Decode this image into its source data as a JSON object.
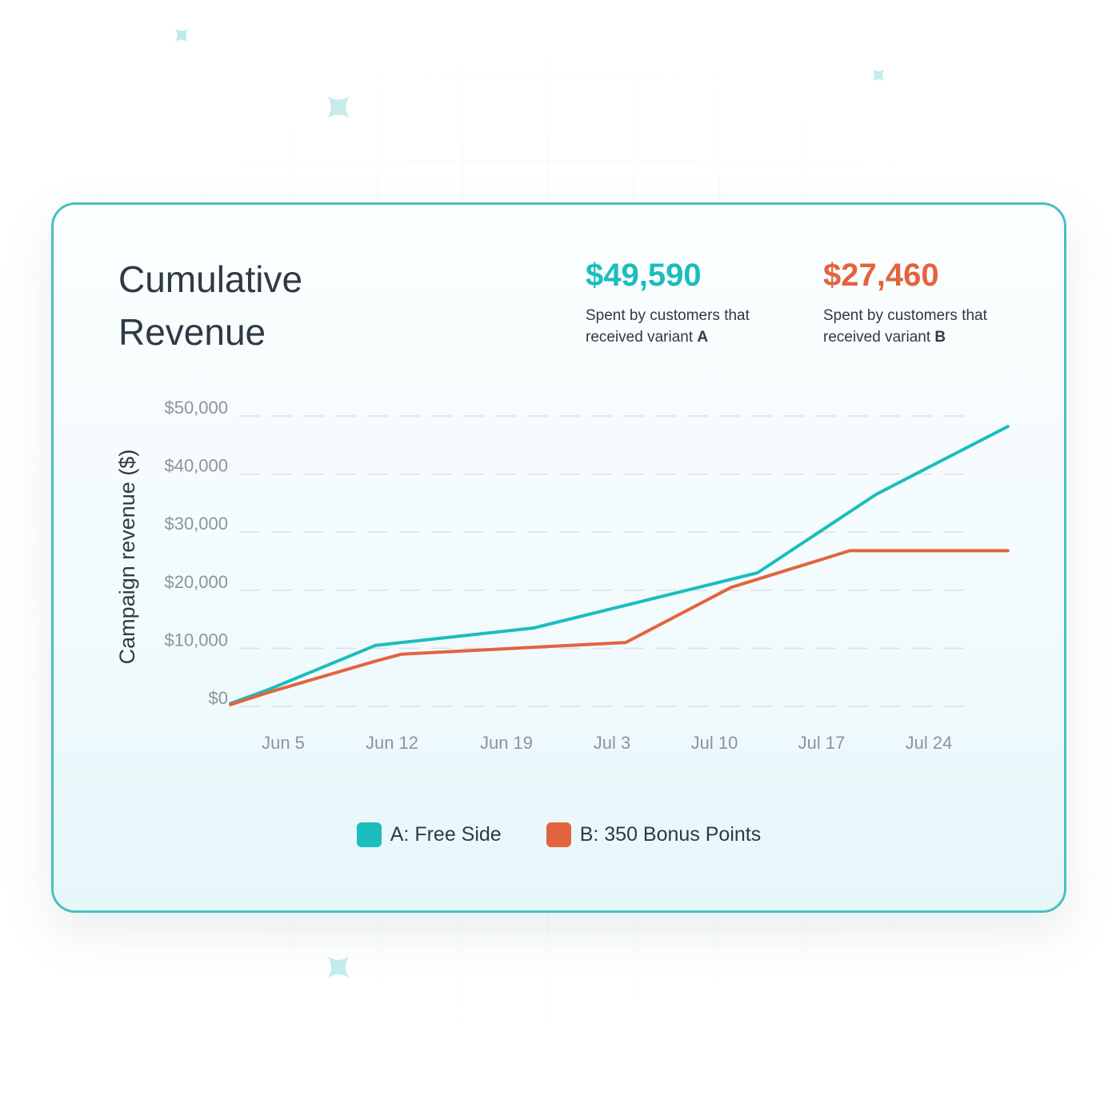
{
  "header": {
    "title": "Cumulative Revenue"
  },
  "stats": [
    {
      "value": "$49,590",
      "caption_prefix": "Spent by customers that received variant",
      "caption_variant": "A",
      "color": "#1bbdbd"
    },
    {
      "value": "$27,460",
      "caption_prefix": "Spent by customers that received variant",
      "caption_variant": "B",
      "color": "#e2643e"
    }
  ],
  "icons": {
    "sparkles": [
      "sparkle-icon",
      "sparkle-icon",
      "sparkle-icon",
      "sparkle-icon"
    ]
  },
  "chart_data": {
    "type": "line",
    "title": "Cumulative Revenue",
    "ylabel": "Campaign revenue ($)",
    "xlabel": "",
    "x_ticks": [
      "Jun 5",
      "Jun 12",
      "Jun 19",
      "Jul 3",
      "Jul 10",
      "Jul 17",
      "Jul 24"
    ],
    "y_ticks": [
      "$50,000",
      "$40,000",
      "$30,000",
      "$20,000",
      "$10,000",
      "$0"
    ],
    "y_tick_values": [
      50000,
      40000,
      30000,
      20000,
      10000,
      0
    ],
    "ylim": [
      0,
      50000
    ],
    "grid": "dashed horizontal",
    "legend_placement": "bottom-center",
    "series": [
      {
        "name": "A: Free Side",
        "color": "#1bbdbd",
        "points": [
          {
            "x": "Jun 1",
            "y": 500
          },
          {
            "x": "Jun 4",
            "y": 3000
          },
          {
            "x": "Jun 12",
            "y": 10500
          },
          {
            "x": "Jun 24",
            "y": 13500
          },
          {
            "x": "Jul 11",
            "y": 23000
          },
          {
            "x": "Jul 20",
            "y": 36500
          },
          {
            "x": "Jul 30",
            "y": 48200
          }
        ]
      },
      {
        "name": "B: 350 Bonus Points",
        "color": "#e2643e",
        "points": [
          {
            "x": "Jun 1",
            "y": 300
          },
          {
            "x": "Jun 4",
            "y": 2500
          },
          {
            "x": "Jun 12",
            "y": 7800
          },
          {
            "x": "Jun 14",
            "y": 9000
          },
          {
            "x": "Jul 1",
            "y": 11000
          },
          {
            "x": "Jul 9",
            "y": 20500
          },
          {
            "x": "Jul 18",
            "y": 26800
          },
          {
            "x": "Jul 30",
            "y": 26800
          }
        ]
      }
    ]
  }
}
